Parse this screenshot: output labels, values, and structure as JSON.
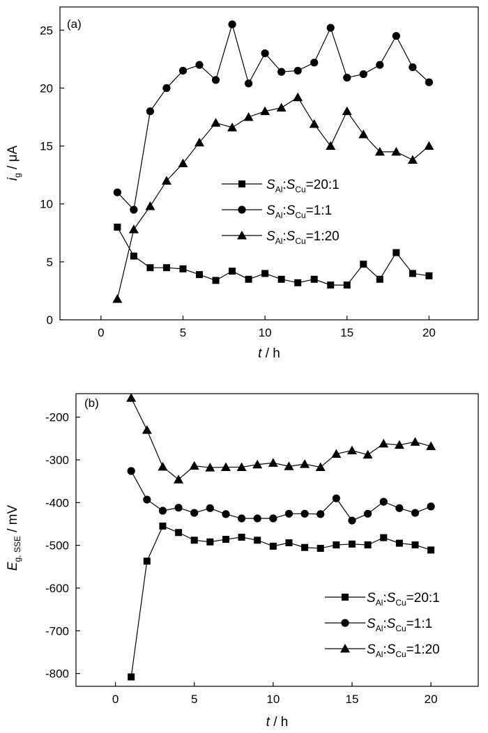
{
  "chart_data": [
    {
      "type": "line",
      "panel_label": "(a)",
      "xlabel": {
        "var": "t",
        "unit": " / h"
      },
      "ylabel": {
        "var": "i",
        "sub": "g",
        "unit": " / μA"
      },
      "xlim": [
        -2.5,
        23
      ],
      "ylim": [
        0,
        27
      ],
      "xticks": [
        0,
        5,
        10,
        15,
        20
      ],
      "yticks": [
        0,
        5,
        10,
        15,
        20,
        25
      ],
      "grid": false,
      "legend_position": "center-right",
      "series": [
        {
          "label": {
            "a": "S",
            "asub": "Al",
            "b": "S",
            "bsub": "Cu",
            "ratio": "=20:1"
          },
          "marker": "square",
          "x": [
            1,
            2,
            3,
            4,
            5,
            6,
            7,
            8,
            9,
            10,
            11,
            12,
            13,
            14,
            15,
            16,
            17,
            18,
            19,
            20
          ],
          "y": [
            8.0,
            5.5,
            4.5,
            4.5,
            4.4,
            3.9,
            3.4,
            4.2,
            3.5,
            4.0,
            3.5,
            3.2,
            3.5,
            3.0,
            3.0,
            4.8,
            3.5,
            5.8,
            4.0,
            3.8
          ]
        },
        {
          "label": {
            "a": "S",
            "asub": "Al",
            "b": "S",
            "bsub": "Cu",
            "ratio": "=1:1"
          },
          "marker": "circle",
          "x": [
            1,
            2,
            3,
            4,
            5,
            6,
            7,
            8,
            9,
            10,
            11,
            12,
            13,
            14,
            15,
            16,
            17,
            18,
            19,
            20
          ],
          "y": [
            11.0,
            9.5,
            18.0,
            20.0,
            21.5,
            22.0,
            20.7,
            25.5,
            20.4,
            23.0,
            21.4,
            21.5,
            22.2,
            25.2,
            20.9,
            21.2,
            22.0,
            24.5,
            21.8,
            20.5
          ]
        },
        {
          "label": {
            "a": "S",
            "asub": "Al",
            "b": "S",
            "bsub": "Cu",
            "ratio": "=1:20"
          },
          "marker": "triangle",
          "x": [
            1,
            2,
            3,
            4,
            5,
            6,
            7,
            8,
            9,
            10,
            11,
            12,
            13,
            14,
            15,
            16,
            17,
            18,
            19,
            20
          ],
          "y": [
            1.8,
            7.8,
            9.8,
            12.0,
            13.5,
            15.3,
            17.0,
            16.6,
            17.5,
            18.0,
            18.3,
            19.2,
            16.9,
            15.0,
            18.0,
            16.0,
            14.5,
            14.5,
            13.8,
            15.0
          ]
        }
      ]
    },
    {
      "type": "line",
      "panel_label": "(b)",
      "xlabel": {
        "var": "t",
        "unit": " / h"
      },
      "ylabel": {
        "var": "E",
        "sub": "g, SSE",
        "unit": " / mV"
      },
      "xlim": [
        -2.5,
        23
      ],
      "ylim": [
        -830,
        -145
      ],
      "xticks": [
        0,
        5,
        10,
        15,
        20
      ],
      "yticks": [
        -800,
        -700,
        -600,
        -500,
        -400,
        -300,
        -200
      ],
      "grid": false,
      "legend_position": "bottom-right",
      "series": [
        {
          "label": {
            "a": "S",
            "asub": "Al",
            "b": "S",
            "bsub": "Cu",
            "ratio": "=20:1"
          },
          "marker": "square",
          "x": [
            1,
            2,
            3,
            4,
            5,
            6,
            7,
            8,
            9,
            10,
            11,
            12,
            13,
            14,
            15,
            16,
            17,
            18,
            19,
            20
          ],
          "y": [
            -808,
            -537,
            -455,
            -470,
            -488,
            -492,
            -486,
            -481,
            -488,
            -502,
            -494,
            -505,
            -507,
            -499,
            -497,
            -499,
            -482,
            -495,
            -499,
            -511
          ]
        },
        {
          "label": {
            "a": "S",
            "asub": "Al",
            "b": "S",
            "bsub": "Cu",
            "ratio": "=1:1"
          },
          "marker": "circle",
          "x": [
            1,
            2,
            3,
            4,
            5,
            6,
            7,
            8,
            9,
            10,
            11,
            12,
            13,
            14,
            15,
            16,
            17,
            18,
            19,
            20
          ],
          "y": [
            -326,
            -393,
            -419,
            -412,
            -424,
            -413,
            -427,
            -437,
            -437,
            -437,
            -426,
            -426,
            -427,
            -390,
            -442,
            -426,
            -398,
            -413,
            -424,
            -409
          ]
        },
        {
          "label": {
            "a": "S",
            "asub": "Al",
            "b": "S",
            "bsub": "Cu",
            "ratio": "=1:20"
          },
          "marker": "triangle",
          "x": [
            1,
            2,
            3,
            4,
            5,
            6,
            7,
            8,
            9,
            10,
            11,
            12,
            13,
            14,
            15,
            16,
            17,
            18,
            19,
            20
          ],
          "y": [
            -155,
            -230,
            -316,
            -346,
            -314,
            -318,
            -317,
            -317,
            -311,
            -307,
            -315,
            -310,
            -317,
            -286,
            -278,
            -288,
            -262,
            -265,
            -258,
            -268
          ]
        }
      ]
    }
  ]
}
